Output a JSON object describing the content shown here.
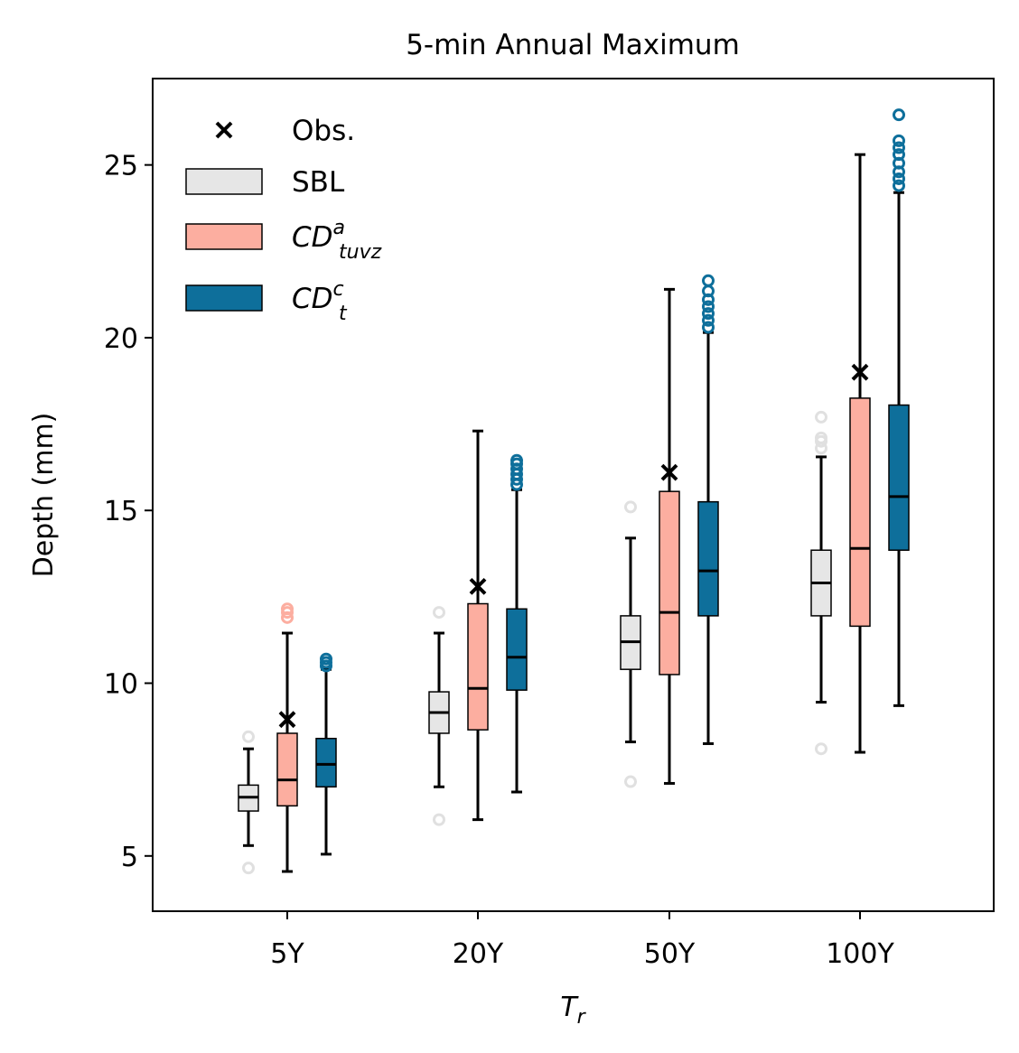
{
  "chart_data": {
    "type": "boxplot",
    "title": "5-min Annual Maximum",
    "xlabel": "T",
    "xlabel_sub": "r",
    "ylabel": "Depth (mm)",
    "categories": [
      "5Y",
      "20Y",
      "50Y",
      "100Y"
    ],
    "ylim": [
      3.4,
      27.5
    ],
    "yticks": [
      5,
      10,
      15,
      20,
      25
    ],
    "legend_position": "top-left",
    "grid": false,
    "obs": {
      "name": "Obs.",
      "color": "#000000",
      "values": [
        8.95,
        12.8,
        16.1,
        19.0
      ]
    },
    "series": [
      {
        "name": "SBL",
        "color": "#e6e6e6",
        "outlier_color": "#e0e0e0",
        "boxes": [
          {
            "whislo": 5.3,
            "q1": 6.3,
            "med": 6.7,
            "q3": 7.05,
            "whishi": 8.1,
            "fliers": [
              4.65,
              8.45
            ]
          },
          {
            "whislo": 7.0,
            "q1": 8.55,
            "med": 9.15,
            "q3": 9.75,
            "whishi": 11.45,
            "fliers": [
              6.05,
              12.05
            ]
          },
          {
            "whislo": 8.3,
            "q1": 10.4,
            "med": 11.2,
            "q3": 11.95,
            "whishi": 14.2,
            "fliers": [
              7.15,
              15.1
            ]
          },
          {
            "whislo": 9.45,
            "q1": 11.95,
            "med": 12.9,
            "q3": 13.85,
            "whishi": 16.55,
            "fliers": [
              8.1,
              16.8,
              17.0,
              17.1,
              17.7
            ]
          }
        ]
      },
      {
        "name": "CD",
        "sub": "tuvz",
        "sup": "a",
        "color": "#fcaea0",
        "outlier_color": "#fcaea0",
        "boxes": [
          {
            "whislo": 4.55,
            "q1": 6.45,
            "med": 7.2,
            "q3": 8.55,
            "whishi": 11.45,
            "fliers": [
              11.9,
              12.05,
              12.15
            ]
          },
          {
            "whislo": 6.05,
            "q1": 8.65,
            "med": 9.85,
            "q3": 12.3,
            "whishi": 17.3,
            "fliers": []
          },
          {
            "whislo": 7.1,
            "q1": 10.25,
            "med": 12.05,
            "q3": 15.55,
            "whishi": 21.4,
            "fliers": []
          },
          {
            "whislo": 8.0,
            "q1": 11.65,
            "med": 13.9,
            "q3": 18.25,
            "whishi": 25.3,
            "fliers": []
          }
        ]
      },
      {
        "name": "CD",
        "sub": "t",
        "sup": "c",
        "color": "#0e6f9b",
        "outlier_color": "#0e6f9b",
        "boxes": [
          {
            "whislo": 5.05,
            "q1": 7.0,
            "med": 7.65,
            "q3": 8.4,
            "whishi": 10.4,
            "fliers": [
              10.5,
              10.6,
              10.7
            ]
          },
          {
            "whislo": 6.85,
            "q1": 9.8,
            "med": 10.75,
            "q3": 12.15,
            "whishi": 15.6,
            "fliers": [
              15.75,
              15.9,
              16.05,
              16.2,
              16.35,
              16.45
            ]
          },
          {
            "whislo": 8.25,
            "q1": 11.95,
            "med": 13.25,
            "q3": 15.25,
            "whishi": 20.15,
            "fliers": [
              20.3,
              20.5,
              20.7,
              20.9,
              21.1,
              21.35,
              21.65
            ]
          },
          {
            "whislo": 9.35,
            "q1": 13.85,
            "med": 15.4,
            "q3": 18.05,
            "whishi": 24.2,
            "fliers": [
              24.4,
              24.6,
              24.8,
              25.05,
              25.3,
              25.5,
              25.7,
              26.45
            ]
          }
        ]
      }
    ]
  }
}
